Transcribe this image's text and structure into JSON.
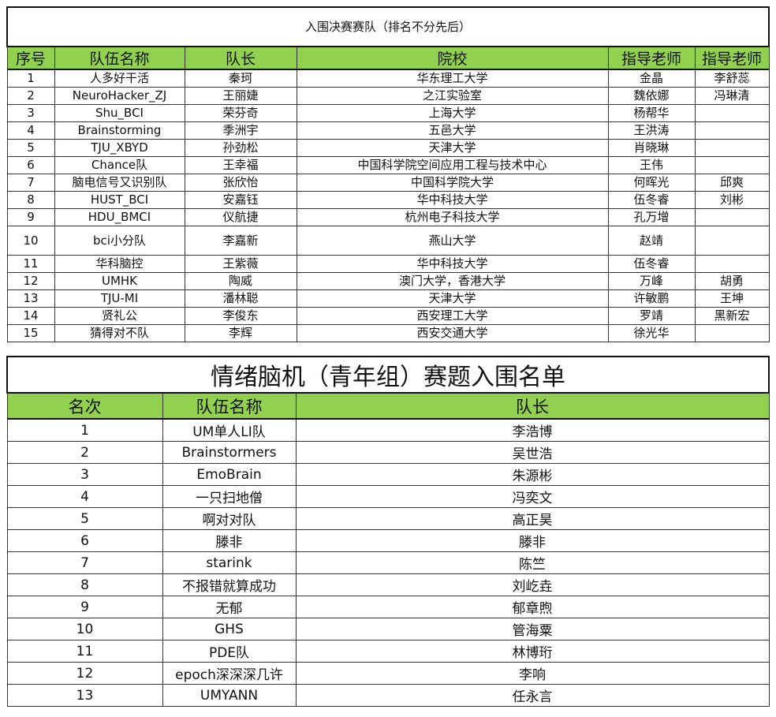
{
  "finalists": {
    "title": "入围决赛赛队（排名不分先后）",
    "headers": [
      "序号",
      "队伍名称",
      "队长",
      "院校",
      "指导老师",
      "指导老师"
    ],
    "rows": [
      [
        "1",
        "人多好干活",
        "秦珂",
        "华东理工大学",
        "金晶",
        "李舒蕊"
      ],
      [
        "2",
        "NeuroHacker_ZJ",
        "王丽婕",
        "之江实验室",
        "魏依娜",
        "冯琳清"
      ],
      [
        "3",
        "Shu_BCI",
        "荣芬奇",
        "上海大学",
        "杨帮华",
        ""
      ],
      [
        "4",
        "Brainstorming",
        "季洲宇",
        "五邑大学",
        "王洪涛",
        ""
      ],
      [
        "5",
        "TJU_XBYD",
        "孙劲松",
        "天津大学",
        "肖晓琳",
        ""
      ],
      [
        "6",
        "Chance队",
        "王幸福",
        "中国科学院空间应用工程与技术中心",
        "王伟",
        ""
      ],
      [
        "7",
        "脑电信号又识别队",
        "张欣怡",
        "中国科学院大学",
        "何晖光",
        "邱爽"
      ],
      [
        "8",
        "HUST_BCI",
        "安嘉钰",
        "华中科技大学",
        "伍冬睿",
        "刘彬"
      ],
      [
        "9",
        "HDU_BMCI",
        "仪航捷",
        "杭州电子科技大学",
        "孔万增",
        ""
      ],
      [
        "10",
        "bci小分队",
        "李嘉新",
        "燕山大学",
        "赵靖",
        ""
      ],
      [
        "11",
        "华科脑控",
        "王紫薇",
        "华中科技大学",
        "伍冬睿",
        ""
      ],
      [
        "12",
        "UMHK",
        "陶威",
        "澳门大学，香港大学",
        "万峰",
        "胡勇"
      ],
      [
        "13",
        "TJU-MI",
        "潘林聪",
        "天津大学",
        "许敏鹏",
        "王坤"
      ],
      [
        "14",
        "贤礼公",
        "李俊东",
        "西安理工大学",
        "罗靖",
        "黑新宏"
      ],
      [
        "15",
        "猜得对不队",
        "李辉",
        "西安交通大学",
        "徐光华",
        ""
      ]
    ]
  },
  "emotion": {
    "title": "情绪脑机（青年组）赛题入围名单",
    "headers": [
      "名次",
      "队伍名称",
      "队长"
    ],
    "rows": [
      [
        "1",
        "UM单人LI队",
        "李浩博"
      ],
      [
        "2",
        "Brainstormers",
        "吴世浩"
      ],
      [
        "3",
        "EmoBrain",
        "朱源彬"
      ],
      [
        "4",
        "一只扫地僧",
        "冯奕文"
      ],
      [
        "5",
        "啊对对队",
        "高正昊"
      ],
      [
        "6",
        "滕非",
        "滕非"
      ],
      [
        "7",
        "starink",
        "陈竺"
      ],
      [
        "8",
        "不报错就算成功",
        "刘屹垚"
      ],
      [
        "9",
        "无郁",
        "郁章煦"
      ],
      [
        "10",
        "GHS",
        "管海粟"
      ],
      [
        "11",
        "PDE队",
        "林博珩"
      ],
      [
        "12",
        "epoch深深深几许",
        "李响"
      ],
      [
        "13",
        "UMYANN",
        "任永言"
      ]
    ]
  },
  "colors": {
    "header_bg": "#92d050"
  }
}
